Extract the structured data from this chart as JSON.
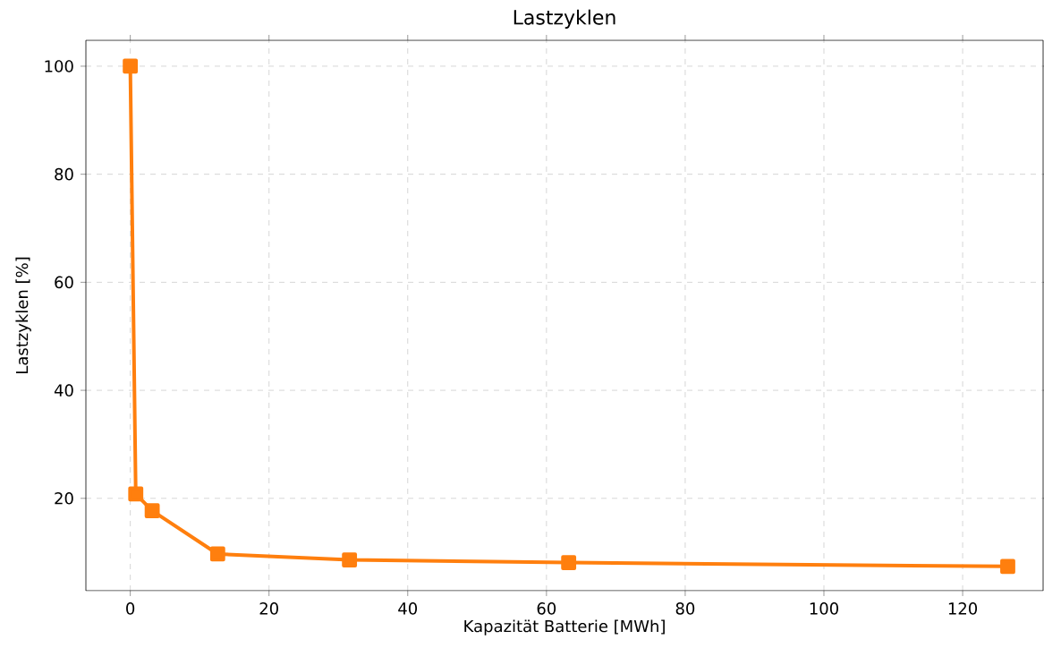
{
  "chart_data": {
    "type": "line",
    "title": "Lastzyklen",
    "xlabel": "Kapazität Batterie [MWh]",
    "ylabel": "Lastzyklen [%]",
    "x": [
      0,
      0.79,
      3.16,
      12.6,
      31.6,
      63.2,
      126.5
    ],
    "series": [
      {
        "color": "#ff7f0e",
        "values": [
          100,
          20.8,
          17.7,
          9.7,
          8.6,
          8.1,
          7.4
        ]
      }
    ],
    "xlim": [
      -6.4,
      131.6
    ],
    "ylim": [
      2.9,
      104.8
    ],
    "xticks": [
      0,
      20,
      40,
      60,
      80,
      100,
      120
    ],
    "yticks": [
      20,
      40,
      60,
      80,
      100
    ],
    "grid": true,
    "marker": "square",
    "line_style": "solid"
  }
}
